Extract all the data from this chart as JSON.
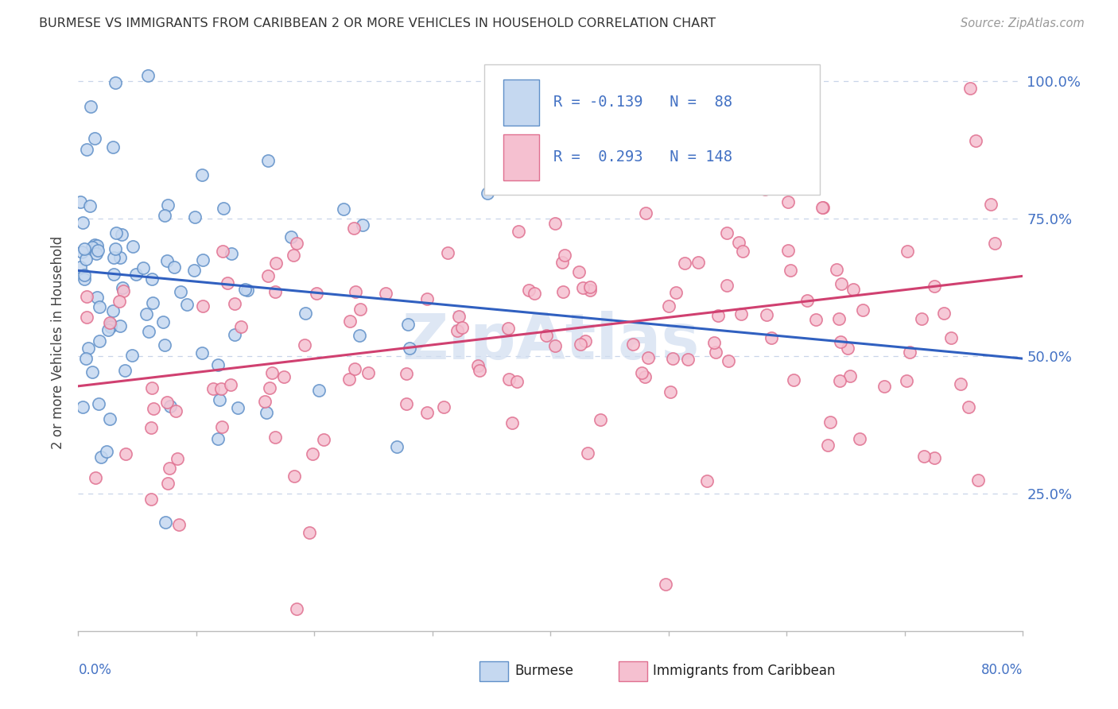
{
  "title": "BURMESE VS IMMIGRANTS FROM CARIBBEAN 2 OR MORE VEHICLES IN HOUSEHOLD CORRELATION CHART",
  "source": "Source: ZipAtlas.com",
  "ylabel": "2 or more Vehicles in Household",
  "blue_R": "-0.139",
  "blue_N": "88",
  "pink_R": "0.293",
  "pink_N": "148",
  "blue_label": "Burmese",
  "pink_label": "Immigrants from Caribbean",
  "blue_fill": "#c5d8f0",
  "blue_edge": "#6090c8",
  "pink_fill": "#f5c0d0",
  "pink_edge": "#e07090",
  "blue_line": "#3060c0",
  "pink_line": "#d04070",
  "legend_color": "#4472c4",
  "title_color": "#333333",
  "source_color": "#999999",
  "axis_color": "#4472c4",
  "grid_color": "#c8d4e8",
  "watermark_color": "#d0ddf0",
  "background_color": "#ffffff",
  "xlim": [
    0.0,
    0.8
  ],
  "ylim": [
    0.0,
    1.05
  ],
  "blue_trend_start": 0.655,
  "blue_trend_end": 0.495,
  "pink_trend_start": 0.445,
  "pink_trend_end": 0.645
}
